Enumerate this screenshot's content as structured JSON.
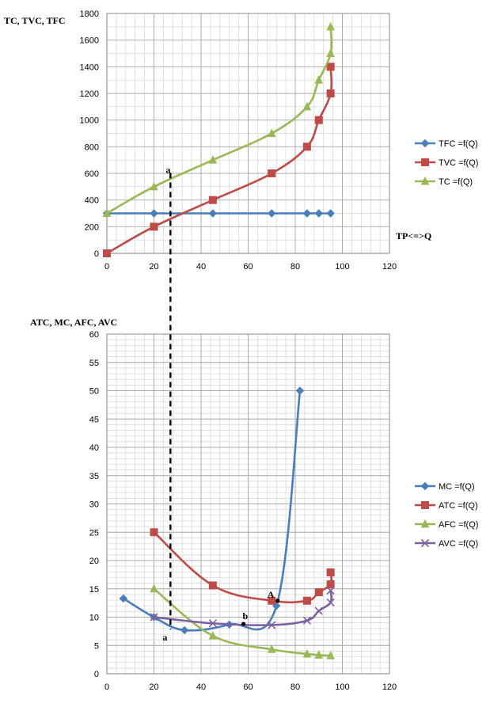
{
  "chart_data": [
    {
      "type": "line",
      "ylabel": "TC, TVC, TFC",
      "xlabel": "TP<=>Q",
      "xlim": [
        0,
        120
      ],
      "ylim": [
        0,
        1800
      ],
      "xticks": [
        0,
        20,
        40,
        60,
        80,
        100,
        120
      ],
      "yticks": [
        0,
        200,
        400,
        600,
        800,
        1000,
        1200,
        1400,
        1600,
        1800
      ],
      "grid": true,
      "legend": "right",
      "series": [
        {
          "name": "TFC  =f(Q)",
          "color": "#4a7ebb",
          "marker": "diamond",
          "x": [
            0,
            20,
            45,
            70,
            85,
            90,
            95
          ],
          "y": [
            300,
            300,
            300,
            300,
            300,
            300,
            300
          ]
        },
        {
          "name": "TVC  =f(Q)",
          "color": "#be4b48",
          "marker": "square",
          "x": [
            0,
            20,
            45,
            70,
            85,
            90,
            95,
            95
          ],
          "y": [
            0,
            200,
            400,
            600,
            800,
            1000,
            1200,
            1400
          ]
        },
        {
          "name": "TC    =f(Q)",
          "color": "#98b954",
          "marker": "triangle",
          "x": [
            0,
            20,
            45,
            70,
            85,
            90,
            95,
            95
          ],
          "y": [
            300,
            500,
            700,
            900,
            1100,
            1300,
            1500,
            1700
          ]
        }
      ],
      "annotations": [
        {
          "text": "a",
          "x": 27,
          "y": 580
        }
      ]
    },
    {
      "type": "line",
      "ylabel": "ATC, MC, AFC, AVC",
      "xlabel": "",
      "xlim": [
        0,
        120
      ],
      "ylim": [
        0,
        60
      ],
      "xticks": [
        0,
        20,
        40,
        60,
        80,
        100,
        120
      ],
      "yticks": [
        0,
        5,
        10,
        15,
        20,
        25,
        30,
        35,
        40,
        45,
        50,
        55,
        60
      ],
      "grid": true,
      "legend": "right",
      "series": [
        {
          "name": "MC  =f(Q)",
          "color": "#4a7ebb",
          "marker": "diamond",
          "x": [
            7,
            20,
            33,
            52,
            72,
            82
          ],
          "y": [
            13.3,
            10,
            7.7,
            8.7,
            12,
            50
          ]
        },
        {
          "name": "ATC =f(Q)",
          "color": "#be4b48",
          "marker": "square",
          "x": [
            20,
            45,
            70,
            85,
            90,
            95,
            95
          ],
          "y": [
            25,
            15.6,
            12.9,
            12.9,
            14.4,
            15.8,
            17.9
          ]
        },
        {
          "name": "AFC =f(Q)",
          "color": "#98b954",
          "marker": "triangle",
          "x": [
            20,
            45,
            70,
            85,
            90,
            95
          ],
          "y": [
            15,
            6.7,
            4.3,
            3.5,
            3.3,
            3.2
          ]
        },
        {
          "name": "AVC =f(Q)",
          "color": "#7d60a0",
          "marker": "x",
          "x": [
            20,
            45,
            70,
            85,
            90,
            95,
            95
          ],
          "y": [
            10,
            8.9,
            8.6,
            9.4,
            11.1,
            12.6,
            14.7
          ]
        }
      ],
      "annotations": [
        {
          "text": "A",
          "x": 71.5,
          "y": 12.9
        },
        {
          "text": "b",
          "x": 58,
          "y": 8.8
        },
        {
          "text": "a",
          "x": 27,
          "y": 7.8
        }
      ]
    }
  ]
}
